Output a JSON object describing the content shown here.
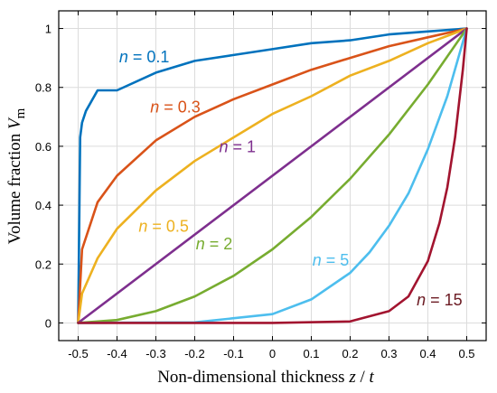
{
  "chart_data": {
    "type": "line",
    "title": "",
    "xlabel": {
      "prefix": "Non-dimensional thickness ",
      "var1": "z",
      "sep": " / ",
      "var2": "t"
    },
    "ylabel": {
      "prefix": "Volume fraction ",
      "var": "V",
      "sub": "m"
    },
    "xlim": [
      -0.55,
      0.55
    ],
    "ylim": [
      -0.06,
      1.06
    ],
    "xticks": [
      -0.5,
      -0.4,
      -0.3,
      -0.2,
      -0.1,
      0,
      0.1,
      0.2,
      0.3,
      0.4,
      0.5
    ],
    "xtick_labels": [
      "-0.5",
      "-0.4",
      "-0.3",
      "-0.2",
      "-0.1",
      "0",
      "0.1",
      "0.2",
      "0.3",
      "0.4",
      "0.5"
    ],
    "yticks": [
      0,
      0.2,
      0.4,
      0.6,
      0.8,
      1
    ],
    "ytick_labels": [
      "0",
      "0.2",
      "0.4",
      "0.6",
      "0.8",
      "1"
    ],
    "grid": true,
    "series": [
      {
        "n": 0.1,
        "color": "#0072BD",
        "x": [
          -0.5,
          -0.495,
          -0.49,
          -0.48,
          -0.45,
          -0.4,
          -0.3,
          -0.2,
          -0.1,
          0,
          0.1,
          0.2,
          0.3,
          0.4,
          0.5
        ],
        "y": [
          0,
          0.63,
          0.68,
          0.72,
          0.79,
          0.79,
          0.85,
          0.89,
          0.91,
          0.93,
          0.95,
          0.96,
          0.98,
          0.99,
          1
        ]
      },
      {
        "n": 0.3,
        "color": "#D95319",
        "x": [
          -0.5,
          -0.49,
          -0.45,
          -0.4,
          -0.3,
          -0.2,
          -0.1,
          0,
          0.1,
          0.2,
          0.3,
          0.4,
          0.5
        ],
        "y": [
          0,
          0.25,
          0.41,
          0.5,
          0.62,
          0.7,
          0.76,
          0.81,
          0.86,
          0.9,
          0.94,
          0.97,
          1
        ]
      },
      {
        "n": 0.5,
        "color": "#EDB120",
        "x": [
          -0.5,
          -0.49,
          -0.45,
          -0.4,
          -0.3,
          -0.2,
          -0.1,
          0,
          0.1,
          0.2,
          0.3,
          0.4,
          0.5
        ],
        "y": [
          0,
          0.1,
          0.22,
          0.32,
          0.45,
          0.55,
          0.63,
          0.71,
          0.77,
          0.84,
          0.89,
          0.95,
          1
        ]
      },
      {
        "n": 1,
        "color": "#7E2F8E",
        "x": [
          -0.5,
          0.5
        ],
        "y": [
          0,
          1
        ]
      },
      {
        "n": 2,
        "color": "#77AC30",
        "x": [
          -0.5,
          -0.4,
          -0.3,
          -0.2,
          -0.1,
          0,
          0.1,
          0.2,
          0.3,
          0.4,
          0.5
        ],
        "y": [
          0,
          0.01,
          0.04,
          0.09,
          0.16,
          0.25,
          0.36,
          0.49,
          0.64,
          0.81,
          1
        ]
      },
      {
        "n": 5,
        "color": "#4DBEEE",
        "x": [
          -0.5,
          -0.2,
          0,
          0.1,
          0.2,
          0.25,
          0.3,
          0.35,
          0.4,
          0.45,
          0.5
        ],
        "y": [
          0,
          0.002,
          0.03,
          0.08,
          0.17,
          0.24,
          0.33,
          0.44,
          0.59,
          0.77,
          1
        ]
      },
      {
        "n": 15,
        "color": "#A2142F",
        "x": [
          -0.5,
          0,
          0.2,
          0.3,
          0.35,
          0.4,
          0.43,
          0.45,
          0.47,
          0.49,
          0.5
        ],
        "y": [
          0,
          0,
          0.005,
          0.04,
          0.09,
          0.21,
          0.34,
          0.46,
          0.63,
          0.86,
          1
        ]
      }
    ],
    "annotations": [
      {
        "prefix": "n",
        "text": " = 0.1",
        "color": "#0072BD",
        "x": -0.33,
        "y": 0.885
      },
      {
        "prefix": "n",
        "text": " = 0.3",
        "color": "#D95319",
        "x": -0.25,
        "y": 0.715
      },
      {
        "prefix": "n",
        "text": " = 1",
        "color": "#7E2F8E",
        "x": -0.09,
        "y": 0.58
      },
      {
        "prefix": "n",
        "text": " = 0.5",
        "color": "#EDB120",
        "x": -0.28,
        "y": 0.31
      },
      {
        "prefix": "n",
        "text": " = 2",
        "color": "#77AC30",
        "x": -0.15,
        "y": 0.25
      },
      {
        "prefix": "n",
        "text": " = 5",
        "color": "#4DBEEE",
        "x": 0.15,
        "y": 0.195
      },
      {
        "prefix": "n",
        "text": " = 15",
        "color": "#6B1A22",
        "x": 0.43,
        "y": 0.06
      }
    ]
  }
}
